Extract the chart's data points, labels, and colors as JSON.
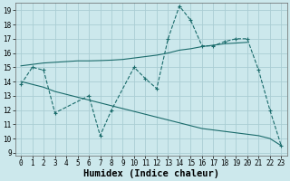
{
  "xlabel": "Humidex (Indice chaleur)",
  "ylabel": "",
  "xlim": [
    -0.5,
    23.5
  ],
  "ylim": [
    9,
    19.5
  ],
  "yticks": [
    9,
    10,
    11,
    12,
    13,
    14,
    15,
    16,
    17,
    18,
    19
  ],
  "xticks": [
    0,
    1,
    2,
    3,
    4,
    5,
    6,
    7,
    8,
    9,
    10,
    11,
    12,
    13,
    14,
    15,
    16,
    17,
    18,
    19,
    20,
    21,
    22,
    23
  ],
  "bg_color": "#cce8ec",
  "grid_color": "#aacdd4",
  "line_color": "#1a6b6b",
  "line1_x": [
    0,
    1,
    2,
    3,
    6,
    7,
    8,
    10,
    11,
    12,
    13,
    14,
    15,
    16,
    17,
    18,
    19,
    20,
    21,
    22,
    23
  ],
  "line1_y": [
    13.8,
    15.0,
    14.8,
    11.8,
    13.0,
    10.2,
    12.0,
    15.0,
    14.2,
    13.5,
    17.0,
    19.3,
    18.3,
    16.5,
    16.5,
    16.8,
    17.0,
    17.0,
    14.8,
    12.0,
    9.5
  ],
  "line2_x": [
    0,
    1,
    2,
    3,
    4,
    5,
    6,
    7,
    8,
    9,
    10,
    11,
    12,
    13,
    14,
    15,
    16,
    17,
    18,
    19,
    20
  ],
  "line2_y": [
    15.1,
    15.2,
    15.3,
    15.35,
    15.4,
    15.45,
    15.45,
    15.47,
    15.5,
    15.55,
    15.65,
    15.75,
    15.85,
    16.0,
    16.2,
    16.3,
    16.45,
    16.55,
    16.65,
    16.7,
    16.75
  ],
  "line3_x": [
    0,
    1,
    2,
    3,
    4,
    5,
    6,
    7,
    8,
    9,
    10,
    11,
    12,
    13,
    14,
    15,
    16,
    17,
    18,
    19,
    20,
    21,
    22,
    23
  ],
  "line3_y": [
    14.0,
    13.8,
    13.6,
    13.3,
    13.1,
    12.9,
    12.7,
    12.5,
    12.3,
    12.1,
    11.9,
    11.7,
    11.5,
    11.3,
    11.1,
    10.9,
    10.7,
    10.6,
    10.5,
    10.4,
    10.3,
    10.2,
    10.0,
    9.5
  ],
  "tick_fontsize": 5.5,
  "label_fontsize": 7.5
}
